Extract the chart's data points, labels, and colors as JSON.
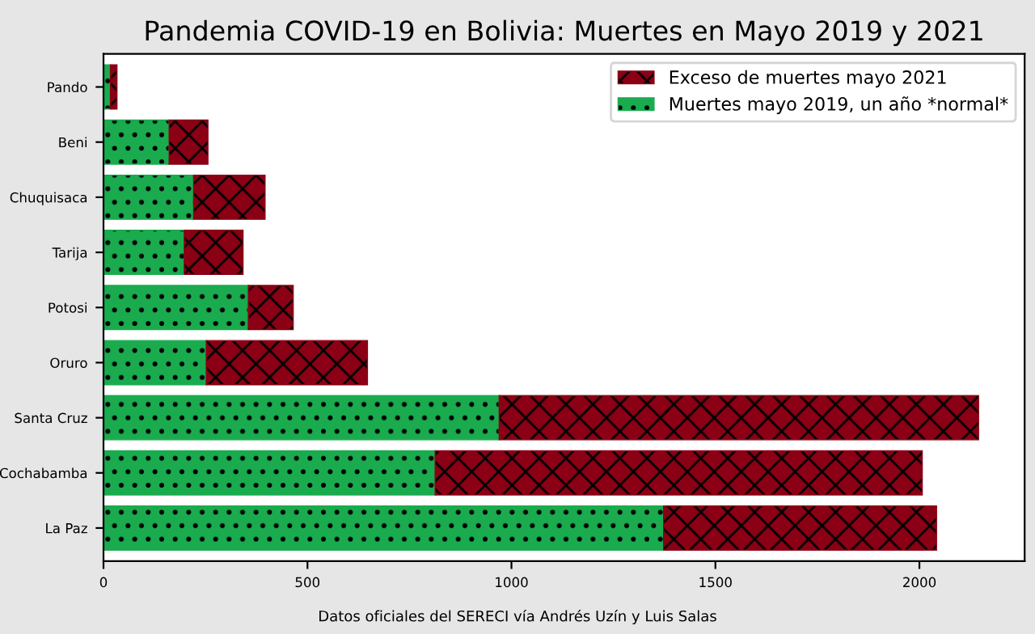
{
  "chart_data": {
    "type": "bar",
    "orientation": "horizontal",
    "stacked": true,
    "title": "Pandemia COVID-19 en Bolivia: Muertes en Mayo 2019 y 2021",
    "categories": [
      "Pando",
      "Beni",
      "Chuquisaca",
      "Tarija",
      "Potosi",
      "Oruro",
      "Santa Cruz",
      "Cochabamba",
      "La Paz"
    ],
    "series": [
      {
        "name": "Muertes mayo 2019, un año *normal*",
        "color": "#1aab4e",
        "values": [
          17,
          161,
          221,
          198,
          355,
          252,
          970,
          813,
          1373
        ]
      },
      {
        "name": "Exceso de muertes mayo 2021",
        "color": "#8b0015",
        "values": [
          16,
          95,
          175,
          144,
          110,
          395,
          1175,
          1194,
          669
        ]
      }
    ],
    "xlim": [
      0,
      2258
    ],
    "xticks": [
      0,
      500,
      1000,
      1500,
      2000
    ],
    "grid": false,
    "legend": "top right",
    "annotations": [
      "Datos oficiales del SERECI vía Andrés Uzín y Luis Salas"
    ]
  }
}
